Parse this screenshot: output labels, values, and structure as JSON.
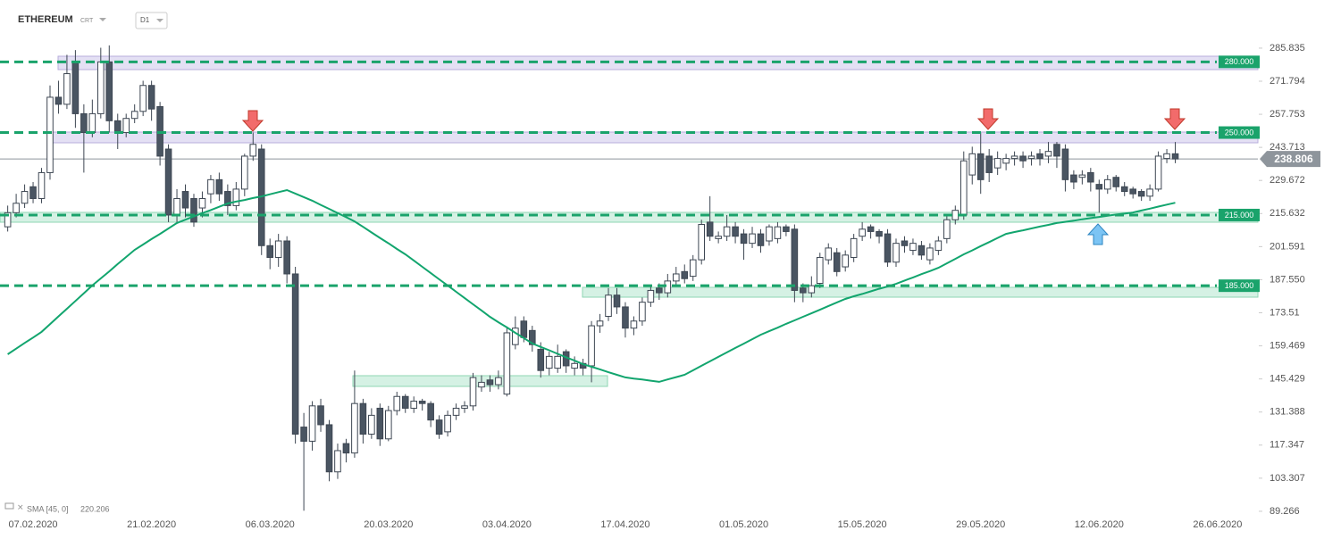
{
  "chart_data": {
    "type": "candlestick",
    "title": "ETHEREUM",
    "feed": "CRT",
    "timeframe": "D1",
    "up_color": "#ffffff",
    "down_color": "#4a5562",
    "outline_color": "#3e4753",
    "categories": [
      null,
      null,
      null,
      "07.02.2020",
      null,
      null,
      null,
      null,
      null,
      null,
      null,
      null,
      null,
      null,
      null,
      null,
      null,
      "21.02.2020",
      null,
      null,
      null,
      null,
      null,
      null,
      null,
      null,
      null,
      null,
      null,
      null,
      null,
      "06.03.2020",
      null,
      null,
      null,
      null,
      null,
      null,
      null,
      null,
      null,
      null,
      null,
      null,
      null,
      "20.03.2020",
      null,
      null,
      null,
      null,
      null,
      null,
      null,
      null,
      null,
      null,
      null,
      null,
      null,
      "03.04.2020",
      null,
      null,
      null,
      null,
      null,
      null,
      null,
      null,
      null,
      null,
      null,
      null,
      null,
      "17.04.2020",
      null,
      null,
      null,
      null,
      null,
      null,
      null,
      null,
      null,
      null,
      null,
      null,
      null,
      "01.05.2020",
      null,
      null,
      null,
      null,
      null,
      null,
      null,
      null,
      null,
      null,
      null,
      null,
      null,
      "15.05.2020",
      null,
      null,
      null,
      null,
      null,
      null,
      null,
      null,
      null,
      null,
      null,
      null,
      null,
      "29.05.2020",
      null,
      null,
      null,
      null,
      null,
      null,
      null,
      null,
      null,
      null,
      null,
      null,
      null,
      "12.06.2020",
      null,
      null,
      null,
      null,
      null,
      null,
      null,
      null,
      null,
      null,
      null,
      null,
      null,
      "26.06.2020",
      null,
      null,
      null,
      null
    ],
    "open": [
      210,
      216,
      220,
      227,
      222,
      233,
      265,
      262,
      280,
      258,
      250,
      258,
      280,
      255,
      250,
      256,
      259,
      270,
      261,
      243,
      215,
      225,
      222,
      218,
      224,
      230,
      225,
      219,
      226,
      240,
      243,
      202,
      197,
      204,
      190,
      125,
      119,
      134,
      126,
      106,
      118,
      114,
      135,
      122,
      133,
      120,
      132,
      138,
      133,
      136,
      135,
      128,
      123,
      130,
      133,
      134,
      142,
      145,
      143,
      139,
      160,
      170,
      166,
      158,
      150,
      150,
      157,
      150,
      152,
      151,
      168,
      172,
      181,
      176,
      167,
      170,
      178,
      184,
      182,
      187,
      191,
      189,
      196,
      212,
      205,
      206,
      210,
      207,
      203,
      207,
      204,
      205,
      210,
      209,
      184,
      182,
      186,
      196,
      199,
      193,
      197,
      206,
      210,
      208,
      207,
      195,
      204,
      200,
      202,
      196,
      200,
      205,
      213,
      215,
      232,
      241,
      240,
      235,
      237,
      239,
      240,
      239,
      241,
      240,
      245,
      243,
      232,
      231,
      233,
      228,
      226,
      231,
      227,
      226,
      225,
      223,
      226,
      239,
      241,
      null,
      null,
      null,
      null,
      null,
      null,
      null,
      null,
      null
    ],
    "high": [
      219,
      224,
      228,
      229,
      235,
      270,
      272,
      283,
      285,
      262,
      264,
      286,
      287,
      258,
      258,
      262,
      272,
      272,
      263,
      245,
      226,
      228,
      224,
      225,
      232,
      233,
      228,
      229,
      241,
      250,
      245,
      205,
      207,
      206,
      193,
      131,
      136,
      137,
      128,
      118,
      120,
      149,
      137,
      133,
      135,
      134,
      140,
      139,
      138,
      137,
      136,
      130,
      132,
      135,
      136,
      148,
      147,
      147,
      149,
      167,
      172,
      172,
      168,
      161,
      157,
      160,
      158,
      155,
      154,
      170,
      173,
      184,
      184,
      178,
      172,
      180,
      185,
      186,
      190,
      193,
      194,
      198,
      213,
      223,
      208,
      215,
      212,
      209,
      210,
      209,
      211,
      212,
      211,
      211,
      186,
      189,
      199,
      203,
      201,
      200,
      207,
      212,
      211,
      209,
      209,
      205,
      206,
      205,
      204,
      203,
      206,
      215,
      219,
      242,
      244,
      250,
      243,
      242,
      241,
      242,
      242,
      242,
      243,
      246,
      246,
      245,
      234,
      234,
      235,
      230,
      232,
      232,
      229,
      227,
      226,
      228,
      242,
      243,
      246,
      null,
      null,
      null,
      null,
      null,
      null,
      null,
      null,
      null
    ],
    "low": [
      208,
      214,
      218,
      220,
      220,
      230,
      258,
      260,
      252,
      233,
      248,
      256,
      250,
      243,
      248,
      254,
      257,
      255,
      236,
      212,
      212,
      214,
      210,
      214,
      220,
      221,
      215,
      217,
      223,
      238,
      198,
      192,
      193,
      186,
      118,
      89.5,
      115,
      123,
      102,
      103,
      110,
      112,
      118,
      120,
      117,
      119,
      130,
      131,
      131,
      132,
      125,
      120,
      121,
      128,
      131,
      132,
      140,
      140,
      141,
      138,
      158,
      161,
      157,
      146,
      147,
      148,
      148,
      147,
      147,
      144,
      165,
      170,
      173,
      163,
      164,
      168,
      176,
      179,
      180,
      185,
      186,
      187,
      194,
      204,
      203,
      204,
      203,
      196,
      201,
      199,
      202,
      203,
      206,
      178,
      178,
      180,
      184,
      194,
      189,
      191,
      195,
      204,
      205,
      203,
      193,
      193,
      199,
      198,
      196,
      194,
      198,
      203,
      211,
      213,
      228,
      224,
      229,
      232,
      234,
      236,
      235,
      236,
      236,
      237,
      235,
      225,
      226,
      228,
      225,
      216,
      224,
      225,
      223,
      222,
      221,
      221,
      225,
      237,
      237,
      null,
      null,
      null,
      null,
      null,
      null,
      null,
      null,
      null
    ],
    "close": [
      216,
      220,
      225,
      222,
      233,
      265,
      262,
      275,
      258,
      250,
      258,
      280,
      255,
      250,
      256,
      259,
      270,
      260,
      240,
      215,
      222,
      218,
      212,
      222,
      230,
      224,
      219,
      226,
      240,
      245,
      202,
      197,
      204,
      190,
      122,
      119,
      134,
      126,
      106,
      115,
      114,
      135,
      122,
      130,
      120,
      132,
      138,
      133,
      136,
      135,
      128,
      122,
      130,
      133,
      134,
      146,
      144,
      143,
      146,
      165,
      167,
      163,
      160,
      149,
      155,
      155,
      151,
      152,
      150,
      168,
      170,
      181,
      176,
      167,
      170,
      178,
      183,
      182,
      187,
      190,
      188,
      196,
      211,
      206,
      206,
      210,
      206,
      203,
      207,
      202,
      210,
      210,
      208,
      183,
      182,
      185,
      197,
      201,
      191,
      198,
      205,
      209,
      208,
      206,
      195,
      203,
      202,
      203,
      198,
      201,
      204,
      213,
      217,
      238,
      241,
      230,
      233,
      239,
      239,
      240,
      238,
      240,
      239,
      242,
      240,
      230,
      229,
      232,
      229,
      226,
      230,
      227,
      225,
      224,
      223,
      226,
      240,
      241,
      238.806,
      null,
      null,
      null,
      null,
      null,
      null,
      null,
      null,
      null
    ],
    "sma": {
      "name": "SMA [45, 0]",
      "color": "#12a56e",
      "values": [
        155.9,
        158.3,
        160.7,
        163.0,
        165.4,
        168.7,
        172.0,
        175.2,
        178.5,
        181.8,
        185.1,
        188.1,
        191.1,
        194.2,
        197.2,
        200.2,
        202.5,
        204.8,
        207.0,
        209.3,
        211.6,
        213.0,
        214.4,
        215.8,
        217.1,
        218.5,
        219.9,
        220.7,
        221.4,
        222.2,
        222.9,
        223.8,
        224.7,
        225.6,
        224.1,
        222.6,
        221.1,
        219.3,
        217.6,
        215.8,
        214.1,
        212.3,
        210.0,
        207.6,
        205.3,
        203.0,
        200.6,
        198.3,
        195.7,
        193.0,
        190.4,
        187.7,
        185.1,
        182.4,
        179.8,
        177.1,
        174.5,
        171.8,
        169.5,
        167.3,
        165.0,
        162.8,
        160.5,
        159.0,
        157.6,
        156.1,
        154.6,
        153.2,
        151.7,
        150.6,
        149.5,
        148.3,
        147.2,
        146.1,
        145.6,
        145.2,
        144.7,
        144.2,
        145.2,
        146.2,
        147.2,
        149.1,
        151.0,
        152.9,
        154.8,
        156.7,
        158.6,
        160.4,
        162.3,
        164.2,
        165.7,
        167.2,
        168.8,
        170.3,
        171.8,
        173.3,
        174.8,
        176.4,
        177.9,
        179.4,
        180.5,
        181.5,
        182.6,
        183.7,
        184.7,
        185.8,
        187.2,
        188.5,
        189.9,
        191.2,
        192.6,
        194.5,
        196.4,
        198.3,
        200.0,
        201.8,
        203.5,
        205.3,
        207.0,
        207.8,
        208.5,
        209.3,
        210.1,
        210.8,
        211.6,
        212.1,
        212.6,
        213.2,
        213.7,
        214.2,
        214.7,
        215.2,
        215.6,
        216.1,
        216.9,
        217.7,
        218.6,
        219.4,
        220.206,
        null,
        null,
        null,
        null,
        null,
        null,
        null,
        null,
        null
      ]
    },
    "levels": [
      {
        "value": 280,
        "label": "280.000"
      },
      {
        "value": 250,
        "label": "250.000"
      },
      {
        "value": 215,
        "label": "215.000"
      },
      {
        "value": 185,
        "label": "185.000"
      }
    ],
    "level_color": "#1aa36b",
    "last_price_color": "#8e959c",
    "ylim": [
      82.8,
      294.9
    ],
    "yticks": [
      285.835,
      271.794,
      257.753,
      243.713,
      229.672,
      215.632,
      201.591,
      {
        "value": 187.55,
        "label": "187.550"
      },
      173.51,
      159.469,
      145.429,
      131.388,
      117.347,
      103.307,
      89.266
    ]
  }
}
